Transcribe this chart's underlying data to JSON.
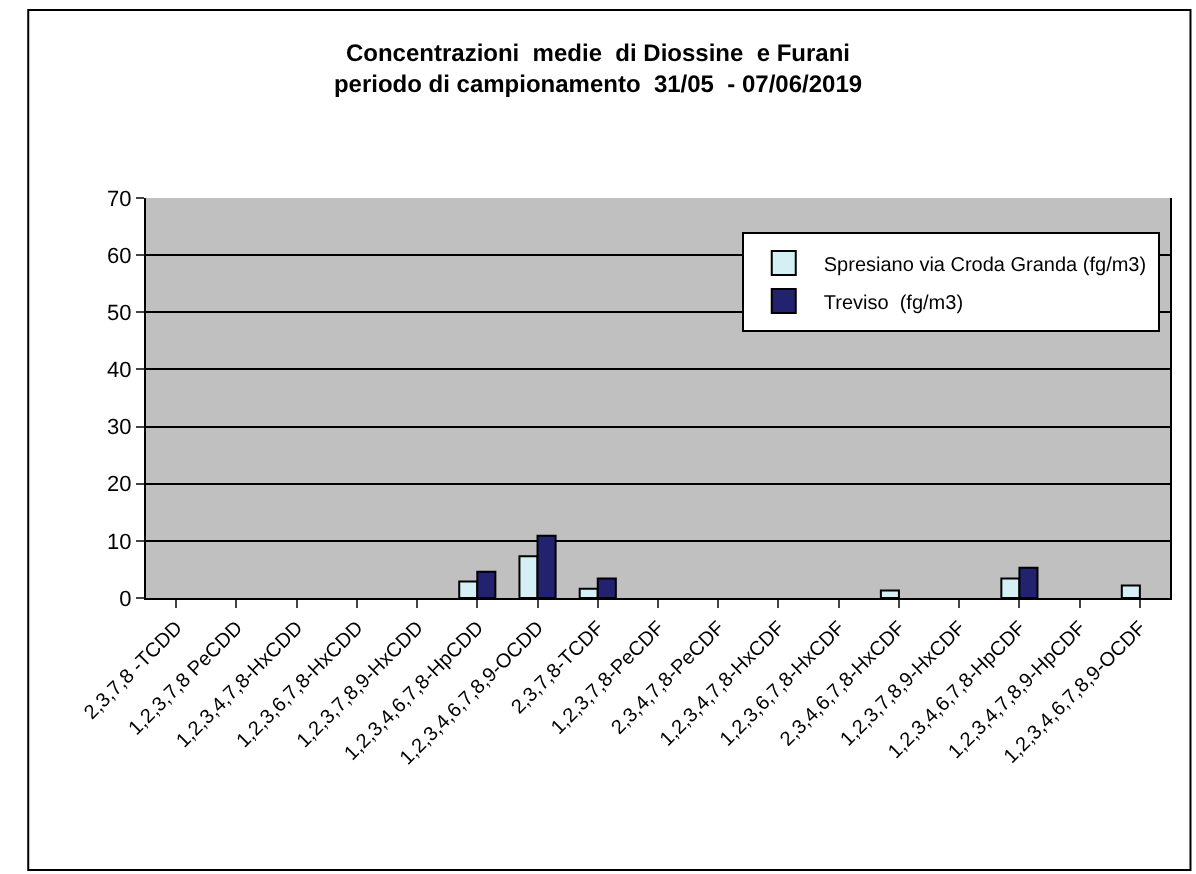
{
  "chart_data": {
    "type": "bar",
    "title": "Concentrazioni  medie  di Diossine  e Furani\nperiodo di campionamento  31/05  - 07/06/2019",
    "categories": [
      "2,3,7,8 -TCDD",
      "1,2,3,7,8 PeCDD",
      "1,2,3,4,7,8-HxCDD",
      "1,2,3,6,7,8-HxCDD",
      "1,2,3,7,8,9-HxCDD",
      "1,2,3,4,6,7,8-HpCDD",
      "1,2,3,4,6,7,8,9-OCDD",
      "2,3,7,8-TCDF",
      "1,2,3,7,8-PeCDF",
      "2,3,4,7,8-PeCDF",
      "1,2,3,4,7,8-HxCDF",
      "1,2,3,6,7,8-HxCDF",
      "2,3,4,6,7,8-HxCDF",
      "1,2,3,7,8,9-HxCDF",
      "1,2,3,4,6,7,8-HpCDF",
      "1,2,3,4,7,8,9-HpCDF",
      "1,2,3,4,6,7,8,9-OCDF"
    ],
    "series": [
      {
        "name": "Spresiano via Croda Granda (fg/m3)",
        "color": "#d4f0f4",
        "values": [
          null,
          null,
          null,
          null,
          null,
          2.9,
          7.3,
          1.6,
          null,
          null,
          null,
          null,
          1.3,
          null,
          3.4,
          null,
          2.2
        ]
      },
      {
        "name": "Treviso  (fg/m3)",
        "color": "#22226e",
        "values": [
          null,
          null,
          null,
          null,
          null,
          4.6,
          10.9,
          3.4,
          null,
          null,
          null,
          null,
          null,
          null,
          5.3,
          null,
          null
        ]
      }
    ],
    "ylim": [
      0,
      70
    ],
    "yticks": [
      0,
      10,
      20,
      30,
      40,
      50,
      60,
      70
    ],
    "grid": "y",
    "legend": "top right"
  }
}
